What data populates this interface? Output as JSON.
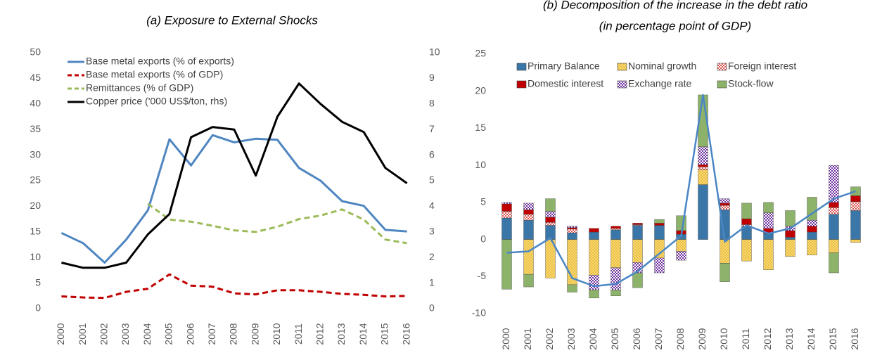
{
  "chart_data": [
    {
      "type": "line",
      "title": "(a)    Exposure to External Shocks",
      "categories": [
        "2000",
        "2001",
        "2002",
        "2003",
        "2004",
        "2005",
        "2006",
        "2007",
        "2008",
        "2009",
        "2010",
        "2011",
        "2012",
        "2013",
        "2014",
        "2015",
        "2016"
      ],
      "ylim": [
        0,
        50
      ],
      "yticks": [
        0,
        5,
        10,
        15,
        20,
        25,
        30,
        35,
        40,
        45,
        50
      ],
      "y2lim": [
        0,
        10
      ],
      "y2ticks": [
        0,
        1,
        2,
        3,
        4,
        5,
        6,
        7,
        8,
        9,
        10
      ],
      "grid": false,
      "legend": "upper left",
      "series": [
        {
          "name": "Base metal exports (% of exports)",
          "color": "#4f86c1",
          "dash": false,
          "values": [
            14.8,
            12.8,
            9.0,
            13.5,
            19.2,
            33.1,
            28.0,
            33.9,
            32.5,
            33.2,
            33.0,
            27.5,
            25.0,
            21.0,
            20.1,
            15.4,
            15.1
          ]
        },
        {
          "name": "Base metal exports (% of GDP)",
          "color": "#c00000",
          "dash": true,
          "values": [
            2.4,
            2.2,
            2.1,
            3.3,
            3.9,
            6.7,
            4.5,
            4.3,
            3.0,
            2.8,
            3.6,
            3.6,
            3.3,
            2.9,
            2.7,
            2.4,
            2.5
          ]
        },
        {
          "name": "Remittances (% of GDP)",
          "color": "#9bbb59",
          "dash": true,
          "values": [
            null,
            null,
            null,
            null,
            20.5,
            17.4,
            17.0,
            16.2,
            15.3,
            15.0,
            16.0,
            17.5,
            18.2,
            19.4,
            17.4,
            13.5,
            12.8
          ]
        },
        {
          "name": "Copper price ('000 US$/ton, rhs)",
          "color": "#000000",
          "dash": false,
          "axis": "y2",
          "values": [
            1.8,
            1.6,
            1.6,
            1.8,
            2.9,
            3.7,
            6.7,
            7.1,
            7.0,
            5.2,
            7.5,
            8.8,
            8.0,
            7.3,
            6.9,
            5.5,
            4.9
          ]
        }
      ]
    },
    {
      "type": "bar",
      "stacked": true,
      "title": "(b) Decomposition of the increase in the debt ratio",
      "subtitle": "(in percentage point of GDP)",
      "categories": [
        "2000",
        "2001",
        "2002",
        "2003",
        "2004",
        "2005",
        "2006",
        "2007",
        "2008",
        "2009",
        "2010",
        "2011",
        "2012",
        "2013",
        "2014",
        "2015",
        "2016"
      ],
      "ylim": [
        -10,
        25
      ],
      "yticks": [
        -10,
        -5,
        0,
        5,
        10,
        15,
        20,
        25
      ],
      "grid": false,
      "legend": "top",
      "series": [
        {
          "name": "Primary Balance",
          "color": "#3a77a8",
          "pattern": "solid",
          "values": [
            2.9,
            2.6,
            1.9,
            0.9,
            1.0,
            1.3,
            1.9,
            1.9,
            0.7,
            7.4,
            4.0,
            1.8,
            0.8,
            0.3,
            1.0,
            3.4,
            3.9
          ]
        },
        {
          "name": "Nominal growth",
          "color": "#ffd966",
          "pattern": "dots",
          "values": [
            0,
            -4.7,
            -5.2,
            -6.1,
            -4.8,
            -3.8,
            -3.1,
            -2.5,
            -1.6,
            2.0,
            -3.2,
            -2.9,
            -4.1,
            -2.3,
            -2.1,
            -1.8,
            -0.4
          ]
        },
        {
          "name": "Foreign interest",
          "color": "#d9534f",
          "pattern": "checker",
          "values": [
            0.9,
            0.8,
            0.4,
            0.5,
            0,
            0.2,
            0.1,
            0,
            0,
            0.4,
            0.6,
            0.2,
            0,
            0,
            0,
            0.9,
            1.2
          ]
        },
        {
          "name": "Domestic interest",
          "color": "#c00000",
          "pattern": "solid",
          "values": [
            1.0,
            0.6,
            0.7,
            0.2,
            0.5,
            0.3,
            0.2,
            0.3,
            0.5,
            0.3,
            0.3,
            0.8,
            0.7,
            0.9,
            0.8,
            0.7,
            0.8
          ]
        },
        {
          "name": "Exchange rate",
          "color": "#7030a0",
          "pattern": "checker",
          "values": [
            0.2,
            0.9,
            0.8,
            0.2,
            -2.0,
            -3.0,
            -1.4,
            -2.0,
            -1.2,
            2.4,
            0.6,
            0,
            2.1,
            0.6,
            0.8,
            5.0,
            0
          ]
        },
        {
          "name": "Stock-flow",
          "color": "#8db36a",
          "pattern": "solid",
          "values": [
            -6.7,
            -1.7,
            1.7,
            -1.0,
            -1.1,
            -0.8,
            -2.0,
            0.5,
            2.0,
            7.0,
            -2.5,
            2.1,
            1.4,
            2.1,
            3.1,
            -2.7,
            1.2
          ]
        },
        {
          "type": "line",
          "color": "#4a86c5",
          "values": [
            -1.8,
            -1.6,
            0.2,
            -5.2,
            -6.3,
            -6.0,
            -4.3,
            -1.9,
            0.5,
            19.5,
            -0.3,
            1.9,
            0.8,
            1.5,
            3.5,
            5.5,
            6.5
          ]
        }
      ]
    }
  ]
}
